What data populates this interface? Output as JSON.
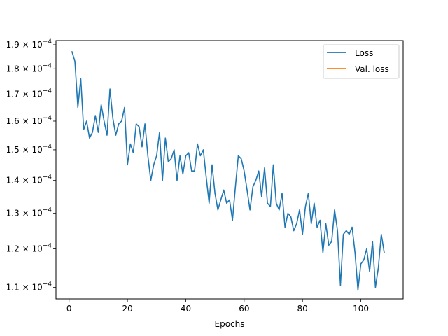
{
  "chart_data": {
    "type": "line",
    "title": "",
    "xlabel": "Epochs",
    "ylabel": "",
    "yscale": "log",
    "xlim": [
      -4.5,
      114.5
    ],
    "ylim": [
      0.0001072,
      0.0001918
    ],
    "grid": false,
    "legend_position": "top-right",
    "x_ticks": [
      0,
      20,
      40,
      60,
      80,
      100
    ],
    "x_tick_labels": [
      "0",
      "20",
      "40",
      "60",
      "80",
      "100"
    ],
    "y_ticks": [
      0.00011,
      0.00012,
      0.00013,
      0.00014,
      0.00015,
      0.00016,
      0.00017,
      0.00018,
      0.00019
    ],
    "y_tick_mantissas": [
      "1.1",
      "1.2",
      "1.3",
      "1.4",
      "1.5",
      "1.6",
      "1.7",
      "1.8",
      "1.9"
    ],
    "y_tick_base": "× 10",
    "y_tick_exponent": "−4",
    "series": [
      {
        "name": "Loss",
        "color": "#1f77b4",
        "x": [
          1,
          2,
          3,
          4,
          5,
          6,
          7,
          8,
          9,
          10,
          11,
          12,
          13,
          14,
          15,
          16,
          17,
          18,
          19,
          20,
          21,
          22,
          23,
          24,
          25,
          26,
          27,
          28,
          29,
          30,
          31,
          32,
          33,
          34,
          35,
          36,
          37,
          38,
          39,
          40,
          41,
          42,
          43,
          44,
          45,
          46,
          47,
          48,
          49,
          50,
          51,
          52,
          53,
          54,
          55,
          56,
          57,
          58,
          59,
          60,
          61,
          62,
          63,
          64,
          65,
          66,
          67,
          68,
          69,
          70,
          71,
          72,
          73,
          74,
          75,
          76,
          77,
          78,
          79,
          80,
          81,
          82,
          83,
          84,
          85,
          86,
          87,
          88,
          89,
          90,
          91,
          92,
          93,
          94,
          95,
          96,
          97,
          98,
          99,
          100,
          101,
          102,
          103,
          104,
          105,
          106,
          107,
          108
        ],
        "values": [
          0.000187,
          0.000183,
          0.000165,
          0.000176,
          0.000157,
          0.00016,
          0.000154,
          0.000156,
          0.000162,
          0.000156,
          0.000166,
          0.00016,
          0.000155,
          0.000172,
          0.000161,
          0.000155,
          0.000159,
          0.00016,
          0.000165,
          0.000145,
          0.000152,
          0.000149,
          0.000159,
          0.000158,
          0.000151,
          0.000159,
          0.000148,
          0.00014,
          0.000145,
          0.000148,
          0.000156,
          0.00014,
          0.000154,
          0.000146,
          0.000147,
          0.00015,
          0.00014,
          0.000148,
          0.000142,
          0.000148,
          0.000149,
          0.000143,
          0.000143,
          0.000152,
          0.000148,
          0.00015,
          0.000141,
          0.000133,
          0.000145,
          0.000136,
          0.000131,
          0.000134,
          0.000137,
          0.000133,
          0.000134,
          0.000128,
          0.000138,
          0.000148,
          0.000147,
          0.000143,
          0.000137,
          0.000131,
          0.000138,
          0.00014,
          0.000143,
          0.000135,
          0.000144,
          0.000133,
          0.000132,
          0.000145,
          0.000133,
          0.000131,
          0.000136,
          0.000126,
          0.00013,
          0.000129,
          0.000125,
          0.000127,
          0.000131,
          0.000124,
          0.000132,
          0.000136,
          0.000127,
          0.000133,
          0.000126,
          0.000128,
          0.000119,
          0.000127,
          0.000121,
          0.000122,
          0.000131,
          0.000125,
          0.0001105,
          0.000124,
          0.000125,
          0.000124,
          0.000126,
          0.000119,
          0.0001093,
          0.000116,
          0.000117,
          0.00012,
          0.000114,
          0.000122,
          0.00011,
          0.000115,
          0.000124,
          0.000119
        ]
      },
      {
        "name": "Val. loss",
        "color": "#ff7f0e",
        "x": [],
        "values": []
      }
    ]
  }
}
